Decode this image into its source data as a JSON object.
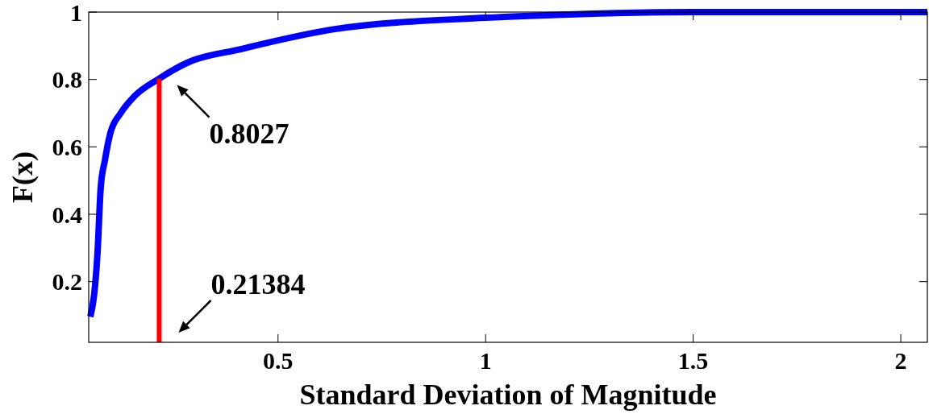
{
  "chart_data": {
    "type": "line",
    "xlabel": "Standard Deviation of Magnitude",
    "ylabel": "F(x)",
    "xlim": [
      0.044,
      2.064
    ],
    "ylim": [
      0.02,
      1
    ],
    "xticks": [
      0.5,
      1,
      1.5,
      2
    ],
    "yticks": [
      0.2,
      0.4,
      0.6,
      0.8,
      1
    ],
    "grid": false,
    "series": [
      {
        "color": "#0000ff",
        "x": [
          0.048,
          0.057,
          0.065,
          0.073,
          0.083,
          0.096,
          0.121,
          0.154,
          0.21384,
          0.282,
          0.41,
          0.64,
          1.0,
          1.2,
          1.5,
          2.064
        ],
        "values": [
          0.096,
          0.16,
          0.28,
          0.48,
          0.56,
          0.64,
          0.7,
          0.75,
          0.8027,
          0.85,
          0.89,
          0.95,
          0.983,
          0.993,
          1,
          1
        ]
      },
      {
        "color": "#ff0000",
        "x": [
          0.21384,
          0.21384
        ],
        "values": [
          0.02,
          0.8027
        ]
      }
    ],
    "annotations": [
      {
        "text": "0.8027",
        "x": 0.21384,
        "y": 0.8027
      },
      {
        "text": "0.21384",
        "x": 0.21384,
        "y": 0.02
      }
    ]
  }
}
